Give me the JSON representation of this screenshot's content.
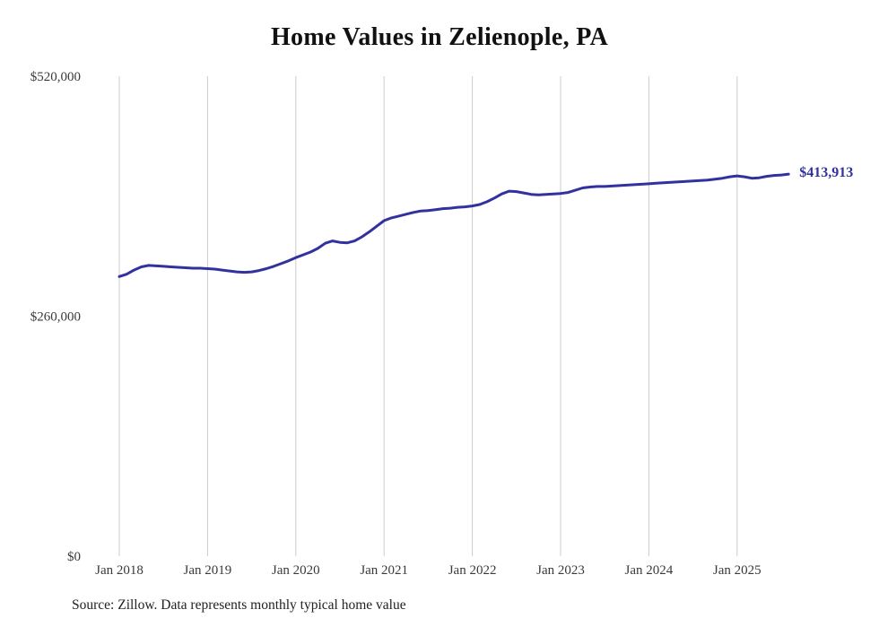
{
  "chart": {
    "title": "Home Values in Zelienople, PA",
    "source": "Source: Zillow. Data represents monthly typical home value",
    "end_label": "$413,913",
    "line_color": "#32329f",
    "grid_color": "#cccccc",
    "axis_label_color": "#3a3a3a"
  },
  "chart_data": {
    "type": "line",
    "title": "Home Values in Zelienople, PA",
    "xlabel": "",
    "ylabel": "",
    "ylim": [
      0,
      520000
    ],
    "grid": "vertical-only",
    "legend": "none",
    "y_tick_values": [
      0,
      260000,
      520000
    ],
    "y_tick_labels": [
      "$0",
      "$260,000",
      "$520,000"
    ],
    "x_tick_labels": [
      "Jan 2018",
      "Jan 2019",
      "Jan 2020",
      "Jan 2021",
      "Jan 2022",
      "Jan 2023",
      "Jan 2024",
      "Jan 2025"
    ],
    "start_month": "2018-01",
    "frequency": "monthly",
    "final_value": 413913,
    "series": [
      {
        "name": "Typical home value",
        "values": [
          303000,
          305500,
          310000,
          313500,
          315000,
          314500,
          314000,
          313500,
          313000,
          312500,
          312000,
          312000,
          311500,
          311000,
          310000,
          309000,
          308000,
          307500,
          308000,
          309500,
          311500,
          314000,
          317000,
          320000,
          323500,
          326500,
          329500,
          333500,
          339000,
          341500,
          340000,
          339500,
          341500,
          346000,
          351500,
          357500,
          363500,
          366500,
          368500,
          370500,
          372500,
          374000,
          374500,
          375500,
          376500,
          377000,
          378000,
          378500,
          379500,
          381000,
          384000,
          388000,
          392500,
          395500,
          395000,
          393500,
          392000,
          391500,
          392000,
          392500,
          393000,
          394000,
          396500,
          399000,
          400000,
          400500,
          400500,
          401000,
          401500,
          402000,
          402500,
          403000,
          403500,
          404000,
          404500,
          405000,
          405500,
          406000,
          406500,
          407000,
          407500,
          408500,
          409500,
          411000,
          412000,
          411000,
          409500,
          410000,
          411500,
          412500,
          413000,
          413913
        ]
      }
    ]
  }
}
